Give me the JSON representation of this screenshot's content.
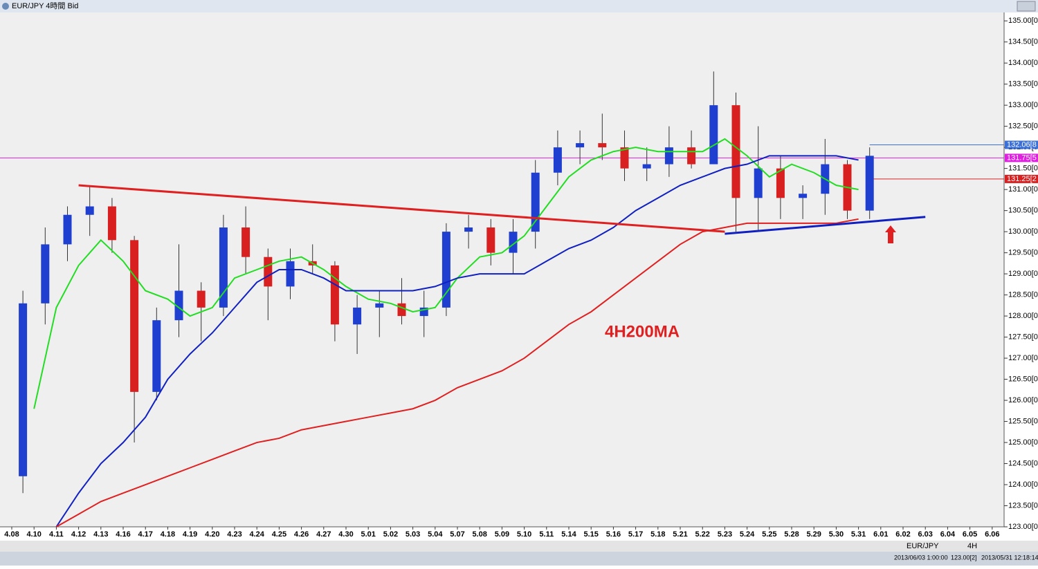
{
  "ui": {
    "window_title": "EUR/JPY 4時間 Bid",
    "toolbar_symbol": "EUR/JPY",
    "toolbar_period": "4H",
    "status_cursor": "2013/06/03 1:00:00",
    "status_price": "123.00[2]",
    "status_time": "2013/05/31 12:18:14"
  },
  "chart_data": {
    "type": "candlestick",
    "categories": [
      "4.08",
      "4.10",
      "4.11",
      "4.12",
      "4.13",
      "4.16",
      "4.17",
      "4.18",
      "4.19",
      "4.20",
      "4.23",
      "4.24",
      "4.25",
      "4.26",
      "4.27",
      "4.30",
      "5.01",
      "5.02",
      "5.03",
      "5.04",
      "5.07",
      "5.08",
      "5.09",
      "5.10",
      "5.11",
      "5.14",
      "5.15",
      "5.16",
      "5.17",
      "5.18",
      "5.21",
      "5.22",
      "5.23",
      "5.24",
      "5.25",
      "5.28",
      "5.29",
      "5.30",
      "5.31",
      "6.01",
      "6.02",
      "6.03",
      "6.04",
      "6.05",
      "6.06"
    ],
    "open": [
      124.2,
      128.3,
      129.7,
      130.4,
      130.6,
      129.8,
      126.2,
      127.9,
      128.6,
      128.2,
      130.1,
      129.4,
      128.7,
      129.3,
      129.2,
      127.8,
      128.2,
      128.3,
      128.0,
      128.2,
      130.0,
      130.1,
      129.5,
      130.0,
      131.4,
      132.0,
      132.1,
      132.0,
      131.5,
      131.6,
      132.0,
      131.6,
      133.0,
      130.8,
      131.5,
      130.8,
      130.9,
      131.6,
      130.5,
      null,
      null,
      null,
      null,
      null,
      null
    ],
    "high": [
      128.6,
      130.1,
      130.6,
      131.1,
      130.8,
      129.9,
      128.2,
      129.7,
      128.8,
      130.4,
      130.6,
      129.6,
      129.6,
      129.7,
      129.3,
      128.5,
      128.6,
      128.9,
      128.6,
      130.2,
      130.4,
      130.3,
      130.3,
      131.7,
      132.4,
      132.4,
      132.8,
      132.4,
      132.0,
      132.5,
      132.4,
      133.8,
      133.3,
      132.5,
      131.8,
      131.1,
      132.2,
      131.7,
      132.0,
      null,
      null,
      null,
      null,
      null,
      null
    ],
    "low": [
      123.8,
      127.8,
      129.3,
      129.9,
      129.5,
      125.0,
      126.0,
      127.5,
      127.4,
      128.0,
      129.0,
      127.9,
      128.4,
      129.0,
      127.4,
      127.1,
      127.5,
      127.8,
      127.5,
      128.0,
      129.6,
      129.2,
      129.0,
      129.6,
      131.1,
      131.6,
      131.7,
      131.2,
      131.2,
      131.3,
      131.5,
      131.7,
      130.0,
      130.0,
      130.3,
      130.3,
      130.4,
      130.3,
      130.3,
      null,
      null,
      null,
      null,
      null,
      null
    ],
    "close": [
      128.3,
      129.7,
      130.4,
      130.6,
      129.8,
      126.2,
      127.9,
      128.6,
      128.2,
      130.1,
      129.4,
      128.7,
      129.3,
      129.2,
      127.8,
      128.2,
      128.3,
      128.0,
      128.2,
      130.0,
      130.1,
      129.5,
      130.0,
      131.4,
      132.0,
      132.1,
      132.0,
      131.5,
      131.6,
      132.0,
      131.6,
      133.0,
      130.8,
      131.5,
      130.8,
      130.9,
      131.6,
      130.5,
      131.8,
      null,
      null,
      null,
      null,
      null,
      null
    ],
    "up_color": "#1f3fd0",
    "down_color": "#d82020",
    "series": [
      {
        "color": "#22dd22",
        "values": [
          null,
          125.8,
          128.2,
          129.2,
          129.8,
          129.3,
          128.6,
          128.4,
          128.0,
          128.2,
          128.9,
          129.1,
          129.3,
          129.4,
          129.1,
          128.7,
          128.4,
          128.3,
          128.1,
          128.2,
          128.9,
          129.4,
          129.5,
          129.9,
          130.6,
          131.3,
          131.7,
          131.9,
          132.0,
          131.9,
          131.9,
          131.9,
          132.2,
          131.8,
          131.3,
          131.6,
          131.4,
          131.1,
          131.0,
          null,
          null,
          null,
          null,
          null,
          null
        ]
      },
      {
        "color": "#1020c0",
        "values": [
          null,
          null,
          123.0,
          123.8,
          124.5,
          125.0,
          125.6,
          126.5,
          127.1,
          127.6,
          128.2,
          128.8,
          129.1,
          129.1,
          128.9,
          128.6,
          128.6,
          128.6,
          128.6,
          128.7,
          128.9,
          129.0,
          129.0,
          129.0,
          129.3,
          129.6,
          129.8,
          130.1,
          130.5,
          130.8,
          131.1,
          131.3,
          131.5,
          131.6,
          131.8,
          131.8,
          131.8,
          131.8,
          131.7,
          null,
          null,
          null,
          null,
          null,
          null
        ]
      },
      {
        "color": "#e02020",
        "values": [
          null,
          null,
          123.0,
          123.3,
          123.6,
          123.8,
          124.0,
          124.2,
          124.4,
          124.6,
          124.8,
          125.0,
          125.1,
          125.3,
          125.4,
          125.5,
          125.6,
          125.7,
          125.8,
          126.0,
          126.3,
          126.5,
          126.7,
          127.0,
          127.4,
          127.8,
          128.1,
          128.5,
          128.9,
          129.3,
          129.7,
          130.0,
          130.1,
          130.2,
          130.2,
          130.2,
          130.2,
          130.2,
          130.3,
          null,
          null,
          null,
          null,
          null,
          null
        ]
      }
    ],
    "trendlines": [
      {
        "color": "#e02020",
        "points": [
          {
            "x": "4.12",
            "y": 131.1
          },
          {
            "x": "5.23",
            "y": 130.0
          }
        ]
      },
      {
        "color": "#1020c0",
        "points": [
          {
            "x": "5.23",
            "y": 129.95
          },
          {
            "x": "6.03",
            "y": 130.35
          }
        ]
      }
    ],
    "annotation": "4H200MA",
    "ylim": [
      123,
      135.2
    ],
    "yticks": [
      {
        "value": 135,
        "label": "135.00[0"
      },
      {
        "value": 134.5,
        "label": "134.50[0"
      },
      {
        "value": 134,
        "label": "134.00[0"
      },
      {
        "value": 133.5,
        "label": "133.50[0"
      },
      {
        "value": 133,
        "label": "133.00[0"
      },
      {
        "value": 132.5,
        "label": "132.50[0"
      },
      {
        "value": 132,
        "label": "132.00[0"
      },
      {
        "value": 131.5,
        "label": "131.50[0"
      },
      {
        "value": 131,
        "label": "131.00[0"
      },
      {
        "value": 130.5,
        "label": "130.50[0"
      },
      {
        "value": 130,
        "label": "130.00[0"
      },
      {
        "value": 129.5,
        "label": "129.50[0"
      },
      {
        "value": 129,
        "label": "129.00[0"
      },
      {
        "value": 128.5,
        "label": "128.50[0"
      },
      {
        "value": 128,
        "label": "128.00[0"
      },
      {
        "value": 127.5,
        "label": "127.50[0"
      },
      {
        "value": 127,
        "label": "127.00[0"
      },
      {
        "value": 126.5,
        "label": "126.50[0"
      },
      {
        "value": 126,
        "label": "126.00[0"
      },
      {
        "value": 125.5,
        "label": "125.50[0"
      },
      {
        "value": 125,
        "label": "125.00[0"
      },
      {
        "value": 124.5,
        "label": "124.50[0"
      },
      {
        "value": 124,
        "label": "124.00[0"
      },
      {
        "value": 123.5,
        "label": "123.50[0"
      },
      {
        "value": 123,
        "label": "123.00[0"
      }
    ],
    "price_markers": [
      {
        "value": 132.06,
        "label": "132.06[8",
        "color": "#3a70d8"
      },
      {
        "value": 131.75,
        "label": "131.75[5",
        "color": "#e020e0"
      },
      {
        "value": 131.25,
        "label": "131.25[2",
        "color": "#d82020"
      }
    ],
    "grid": false
  }
}
